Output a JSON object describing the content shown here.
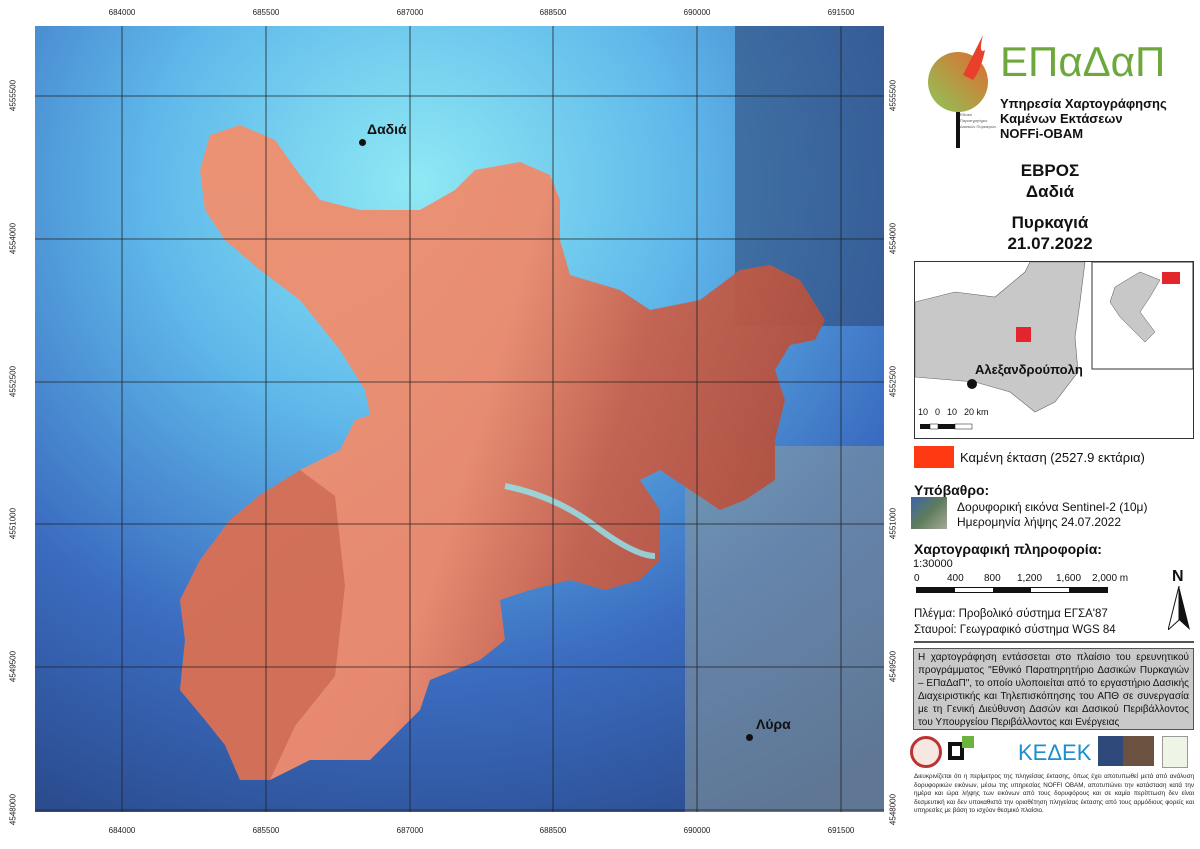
{
  "map": {
    "x_ticks": [
      "684000",
      "685500",
      "687000",
      "688500",
      "690000",
      "691500"
    ],
    "y_ticks": [
      "4555500",
      "4554000",
      "4552500",
      "4551000",
      "4549500",
      "4548000"
    ],
    "places": [
      {
        "name": "Δαδιά"
      },
      {
        "name": "Λύρα"
      }
    ],
    "colors": {
      "burned_light": "#f2906f",
      "burned_dark": "#b3503f",
      "water": "#5bd0ea",
      "forest": "#2a4f9a"
    }
  },
  "logo": {
    "name": "ΕΠαΔαΠ",
    "line1": "Υπηρεσία Χαρτογράφησης",
    "line2": "Καμένων Εκτάσεων",
    "line3": "NOFFi-OBAM",
    "small_text": "Εθνικό Παρατηρητήριο Δασικών Πυρκαγιών"
  },
  "title": {
    "region": "ΕΒΡΟΣ",
    "place": "Δαδιά",
    "event": "Πυρκαγιά",
    "date": "21.07.2022"
  },
  "inset": {
    "city": "Αλεξανδρούπολη",
    "scale_labels": [
      "10",
      "0",
      "10",
      "20 km"
    ],
    "marker_color": "#e3262b"
  },
  "legend": {
    "burned_label": "Καμένη έκταση (2527.9 εκτάρια)",
    "burned_color": "#ff3a12"
  },
  "background": {
    "heading": "Υπόβαθρο:",
    "line1": "Δορυφορική εικόνα Sentinel-2 (10μ)",
    "line2": "Ημερομηνία λήψης 24.07.2022"
  },
  "carto": {
    "heading": "Χαρτογραφική πληροφορία:",
    "scale": "1:30000",
    "scale_labels": [
      "0",
      "400",
      "800",
      "1,200",
      "1,600",
      "2,000 m"
    ],
    "north": "N",
    "grid": "Πλέγμα: Προβολικό σύστημα ΕΓΣΑ'87",
    "crosses": "Σταυροί: Γεωγραφικό σύστημα WGS 84"
  },
  "info_box": "Η χαρτογράφηση εντάσσεται στο πλαίσιο του ερευνητικού προγράμματος \"Εθνικό Παρατηρητήριο Δασικών Πυρκαγιών – ΕΠαΔαΠ\", το οποίο υλοποιείται από το εργαστήριο Δασικής Διαχειριστικής και Τηλεπισκόπησης του ΑΠΘ σε συνεργασία με τη Γενική Διεύθυνση Δασών και Δασικού Περιβάλλοντος του Υπουργείου Περιβάλλοντος και Ενέργειας",
  "partners": [
    "ΚΕΔΕΚ"
  ],
  "disclaimer": "Διευκρινίζεται ότι η περίμετρος της πληγείσας έκτασης, όπως έχει αποτυπωθεί μετά από ανάλυση δορυφορικών εικόνων, μέσω της υπηρεσίας NOFFI OBAM, αποτυπώνει την κατάσταση κατά την ημέρα και ώρα λήψης των εικόνων από τους δορυφόρους και σε καμία περίπτωση δεν είναι δεσμευτική και δεν υποκαθιστά την οριοθέτηση πληγείσας έκτασης από τους αρμόδιους φορείς και υπηρεσίες με βάση το ισχύον θεσμικό πλαίσιο."
}
